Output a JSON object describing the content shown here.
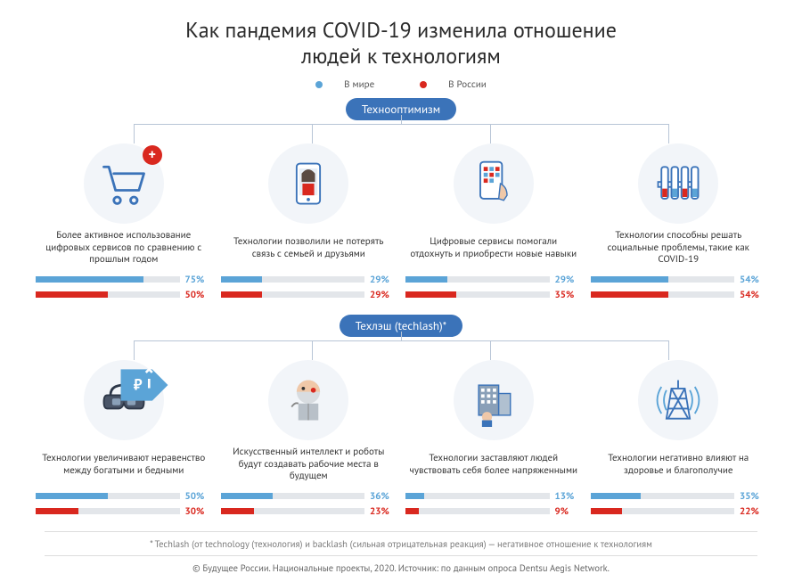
{
  "colors": {
    "world": "#5ba4d7",
    "russia": "#d9281f",
    "track": "#e3e6ea",
    "icon_bg": "#f2f5f9",
    "pill": "#3b73b9",
    "text": "#333333",
    "connector": "#b8c5d6"
  },
  "title_line1": "Как пандемия COVID-19 изменила отношение",
  "title_line2": "людей к технологиям",
  "legend": {
    "world": "В мире",
    "russia": "В России"
  },
  "section1": {
    "label": "Технооптимизм",
    "items": [
      {
        "icon": "cart",
        "badge_plus": true,
        "caption": "Более активное использование цифровых сервисов по сравнению с прошлым годом",
        "world": 75,
        "russia": 50
      },
      {
        "icon": "videocall",
        "caption": "Технологии позволили не потерять связь с семьей и друзьями",
        "world": 29,
        "russia": 29
      },
      {
        "icon": "app",
        "caption": "Цифровые сервисы помогали отдохнуть и приобрести новые навыки",
        "world": 29,
        "russia": 35
      },
      {
        "icon": "testtubes",
        "caption": "Технологии способны решать социальные проблемы, такие как COVID-19",
        "world": 54,
        "russia": 54
      }
    ]
  },
  "section2": {
    "label": "Техлэш (techlash)*",
    "items": [
      {
        "icon": "vr",
        "price_tag": true,
        "caption": "Технологии увеличивают неравенство между богатыми и бедными",
        "world": 50,
        "russia": 30
      },
      {
        "icon": "robot",
        "caption": "Искусственный интеллект и роботы будут создавать рабочие места в будущем",
        "world": 36,
        "russia": 23
      },
      {
        "icon": "office",
        "caption": "Технологии заставляют людей чувствовать себя более напряженными",
        "world": 13,
        "russia": 9
      },
      {
        "icon": "tower",
        "caption": "Технологии негативно влияют на здоровье и благополучие",
        "world": 35,
        "russia": 22
      }
    ]
  },
  "footnote": "* Techlash (от technology (технология) и backlash (сильная отрицательная реакция) — негативное отношение к технологиям",
  "source": "© Будущее России. Национальные проекты, 2020. Источник: по данным опроса Dentsu Aegis Network."
}
